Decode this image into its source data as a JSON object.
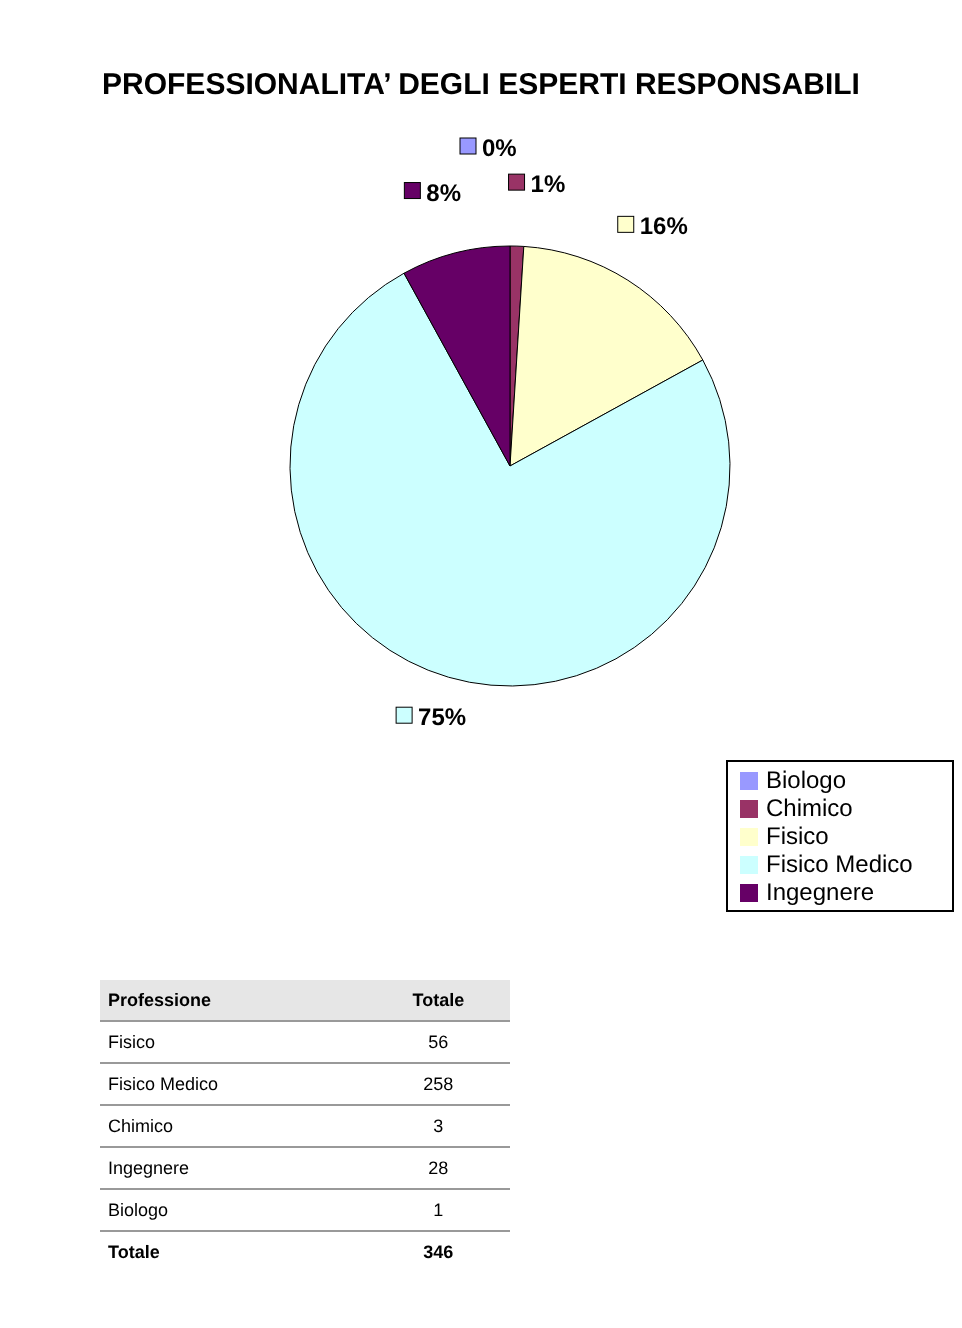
{
  "chart_data": {
    "type": "pie",
    "title": "PROFESSIONALITA’ DEGLI ESPERTI RESPONSABILI",
    "categories": [
      "Biologo",
      "Chimico",
      "Fisico",
      "Fisico Medico",
      "Ingegnere"
    ],
    "values": [
      0,
      1,
      16,
      75,
      8
    ],
    "colors": [
      "#9999ff",
      "#993366",
      "#ffffcc",
      "#ccffff",
      "#660066"
    ],
    "legend": "bottom right",
    "value_labels": [
      "0%",
      "1%",
      "16%",
      "75%",
      "8%"
    ],
    "annotations": [
      "Professione",
      "Totale",
      "Fisico",
      "56",
      "Fisico Medico",
      "258",
      "Chimico",
      "3",
      "Ingegnere",
      "28",
      "Biologo",
      "1",
      "Totale",
      "346"
    ]
  }
}
